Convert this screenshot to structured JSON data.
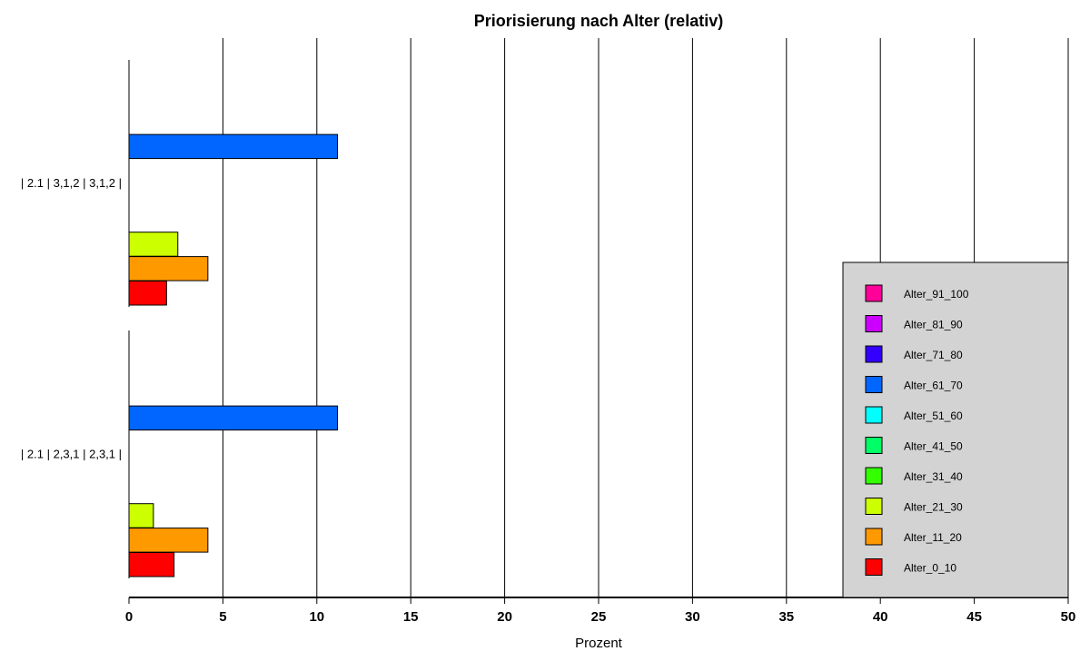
{
  "chart_data": {
    "type": "bar",
    "orientation": "horizontal",
    "title": "Priorisierung nach Alter (relativ)",
    "xlabel": "Prozent",
    "ylabel": "",
    "xlim": [
      0,
      50
    ],
    "x_ticks": [
      0,
      5,
      10,
      15,
      20,
      25,
      30,
      35,
      40,
      45,
      50
    ],
    "grid": "vertical",
    "legend_position": "bottom-right",
    "categories": [
      "| 2.1 | 3,1,2 | 3,1,2 |",
      "| 2.1 | 2,3,1 | 2,3,1 |"
    ],
    "series": [
      {
        "name": "Alter_0_10",
        "color": "#ff0000",
        "values": [
          2.0,
          2.4
        ]
      },
      {
        "name": "Alter_11_20",
        "color": "#ff9900",
        "values": [
          4.2,
          4.2
        ]
      },
      {
        "name": "Alter_21_30",
        "color": "#ccff00",
        "values": [
          2.6,
          1.3
        ]
      },
      {
        "name": "Alter_31_40",
        "color": "#33ff00",
        "values": [
          0,
          0
        ]
      },
      {
        "name": "Alter_41_50",
        "color": "#00ff66",
        "values": [
          0,
          0
        ]
      },
      {
        "name": "Alter_51_60",
        "color": "#00ffff",
        "values": [
          0,
          0
        ]
      },
      {
        "name": "Alter_61_70",
        "color": "#0066ff",
        "values": [
          11.1,
          11.1
        ]
      },
      {
        "name": "Alter_71_80",
        "color": "#3300ff",
        "values": [
          0,
          0
        ]
      },
      {
        "name": "Alter_81_90",
        "color": "#cc00ff",
        "values": [
          0,
          0
        ]
      },
      {
        "name": "Alter_91_100",
        "color": "#ff0099",
        "values": [
          0,
          0
        ]
      }
    ]
  }
}
